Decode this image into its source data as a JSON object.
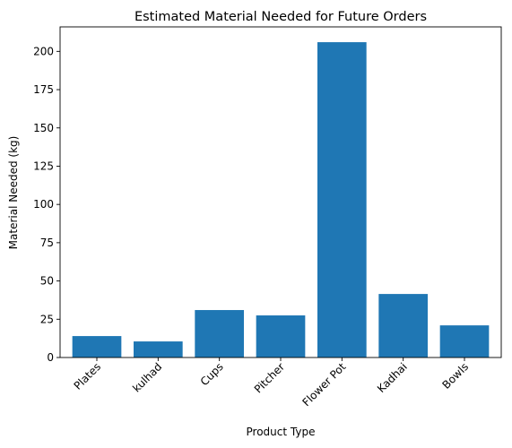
{
  "chart_data": {
    "type": "bar",
    "title": "Estimated Material Needed for Future Orders",
    "xlabel": "Product Type",
    "ylabel": "Material Needed (kg)",
    "categories": [
      "Plates",
      "kulhad",
      "Cups",
      "Pitcher",
      "Flower Pot",
      "Kadhai",
      "Bowls"
    ],
    "values": [
      14,
      10.5,
      31,
      27.5,
      206,
      41.5,
      21
    ],
    "ylim": [
      0,
      216
    ],
    "yticks": [
      0,
      25,
      50,
      75,
      100,
      125,
      150,
      175,
      200
    ],
    "bar_color": "#1f77b4",
    "grid": false,
    "x_tick_rotation_deg": 45
  }
}
